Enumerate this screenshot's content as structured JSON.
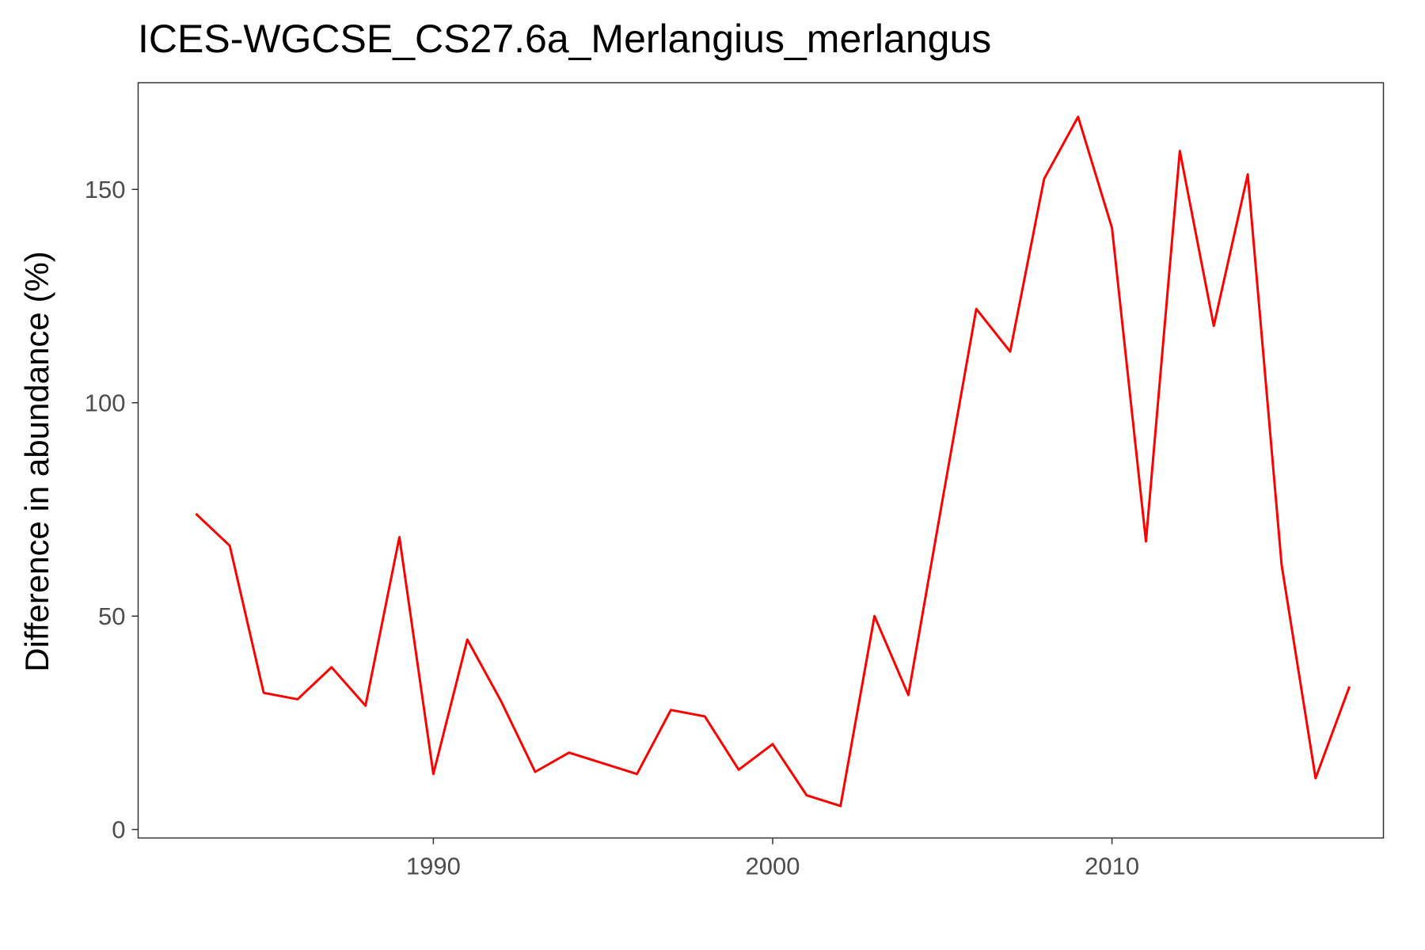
{
  "chart_data": {
    "type": "line",
    "title": "ICES-WGCSE_CS27.6a_Merlangius_merlangus",
    "xlabel": "",
    "ylabel": "Difference in abundance (%)",
    "xlim": [
      1981.3,
      2018.0
    ],
    "ylim": [
      -2,
      175
    ],
    "xticks": [
      1990,
      2000,
      2010
    ],
    "yticks": [
      0,
      50,
      100,
      150
    ],
    "grid": false,
    "legend": "none",
    "series": [
      {
        "color": "#ff0000",
        "x": [
          1983,
          1984,
          1985,
          1986,
          1987,
          1988,
          1989,
          1990,
          1991,
          1992,
          1993,
          1994,
          1995,
          1996,
          1997,
          1998,
          1999,
          2000,
          2001,
          2002,
          2003,
          2004,
          2005,
          2006,
          2007,
          2008,
          2009,
          2010,
          2011,
          2012,
          2013,
          2014,
          2015,
          2016,
          2017
        ],
        "y": [
          74,
          66.5,
          32,
          30.5,
          38,
          29,
          68.5,
          13,
          44.5,
          30,
          13.5,
          18,
          15.5,
          13,
          28,
          26.5,
          14,
          20,
          8,
          5.5,
          50,
          31.5,
          77,
          122,
          112,
          152.5,
          167,
          141,
          67.5,
          159,
          118,
          153.5,
          62,
          12,
          33.5
        ]
      }
    ]
  }
}
